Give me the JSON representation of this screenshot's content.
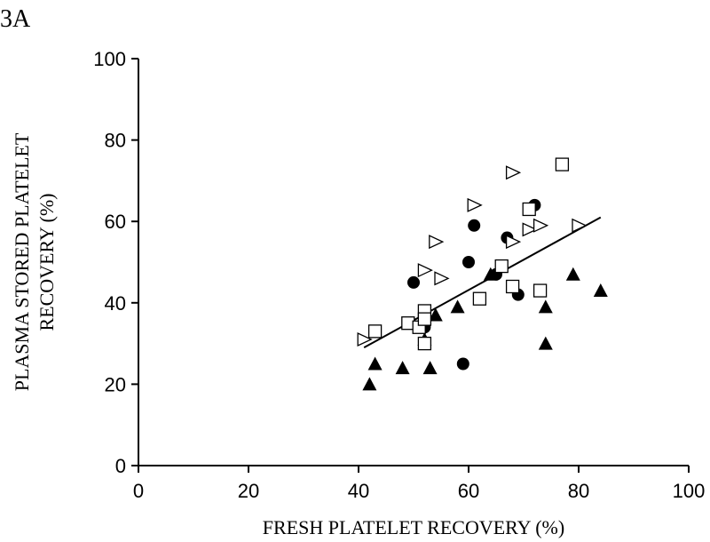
{
  "panel_label": "3A",
  "chart_data": {
    "type": "scatter",
    "title": "",
    "xlabel": "FRESH PLATELET RECOVERY (%)",
    "ylabel_lines": [
      "PLASMA STORED PLATELET",
      "RECOVERY (%)"
    ],
    "xlim": [
      0,
      100
    ],
    "ylim": [
      0,
      100
    ],
    "xticks": [
      0,
      20,
      40,
      60,
      80,
      100
    ],
    "yticks": [
      0,
      20,
      40,
      60,
      80,
      100
    ],
    "grid": false,
    "legend": "none",
    "series": [
      {
        "marker": "circle-filled",
        "points": [
          [
            50,
            45
          ],
          [
            52,
            34
          ],
          [
            59,
            25
          ],
          [
            60,
            50
          ],
          [
            61,
            59
          ],
          [
            65,
            47
          ],
          [
            67,
            56
          ],
          [
            69,
            42
          ],
          [
            72,
            64
          ]
        ]
      },
      {
        "marker": "triangle-up-filled",
        "points": [
          [
            42,
            20
          ],
          [
            43,
            25
          ],
          [
            48,
            24
          ],
          [
            52,
            31
          ],
          [
            53,
            24
          ],
          [
            54,
            37
          ],
          [
            58,
            39
          ],
          [
            64,
            47
          ],
          [
            74,
            30
          ],
          [
            74,
            39
          ],
          [
            79,
            47
          ],
          [
            84,
            43
          ]
        ]
      },
      {
        "marker": "square-open",
        "points": [
          [
            43,
            33
          ],
          [
            49,
            35
          ],
          [
            51,
            34
          ],
          [
            52,
            38
          ],
          [
            52,
            36
          ],
          [
            52,
            30
          ],
          [
            62,
            41
          ],
          [
            66,
            49
          ],
          [
            68,
            44
          ],
          [
            71,
            63
          ],
          [
            73,
            43
          ],
          [
            77,
            74
          ]
        ]
      },
      {
        "marker": "triangle-right-open",
        "points": [
          [
            41,
            31
          ],
          [
            52,
            48
          ],
          [
            54,
            55
          ],
          [
            55,
            46
          ],
          [
            61,
            64
          ],
          [
            68,
            55
          ],
          [
            68,
            72
          ],
          [
            71,
            58
          ],
          [
            73,
            59
          ],
          [
            80,
            59
          ]
        ]
      }
    ],
    "trendline": {
      "x": [
        41,
        84
      ],
      "y": [
        29,
        61
      ]
    }
  }
}
